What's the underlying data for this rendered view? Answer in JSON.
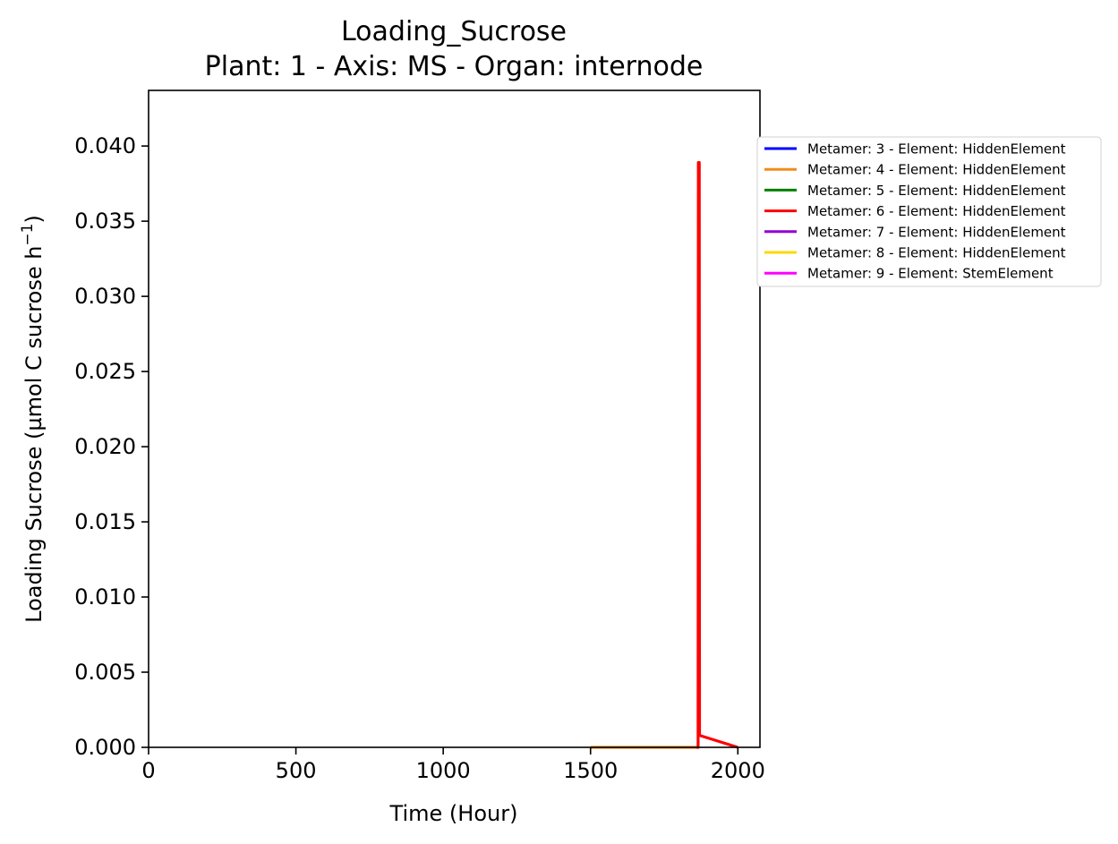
{
  "chart_data": {
    "type": "line",
    "title": "Loading_Sucrose",
    "subtitle": "Plant: 1 - Axis: MS - Organ: internode",
    "xlabel": "Time (Hour)",
    "ylabel_main": "Loading Sucrose (µmol C sucrose h",
    "ylabel_exp": "−1",
    "ylabel_close": ")",
    "xlim": [
      0,
      2075
    ],
    "ylim": [
      0,
      0.0437
    ],
    "x_ticks": [
      0,
      500,
      1000,
      1500,
      2000
    ],
    "x_tick_labels": [
      "0",
      "500",
      "1000",
      "1500",
      "2000"
    ],
    "y_ticks": [
      0,
      0.005,
      0.01,
      0.015,
      0.02,
      0.025,
      0.03,
      0.035,
      0.04
    ],
    "y_tick_labels": [
      "0.000",
      "0.005",
      "0.010",
      "0.015",
      "0.020",
      "0.025",
      "0.030",
      "0.035",
      "0.040"
    ],
    "grid": false,
    "legend_position": "outside-right",
    "series": [
      {
        "name": "Metamer: 3 - Element: HiddenElement",
        "color": "#0000ff",
        "x": [],
        "y": []
      },
      {
        "name": "Metamer: 4 - Element: HiddenElement",
        "color": "#f28c1c",
        "x": [
          1500,
          1860
        ],
        "y": [
          0,
          0
        ]
      },
      {
        "name": "Metamer: 5 - Element: HiddenElement",
        "color": "#008000",
        "x": [],
        "y": []
      },
      {
        "name": "Metamer: 6 - Element: HiddenElement",
        "color": "#ff0000",
        "x": [
          1860,
          1865,
          1866,
          1869,
          1870,
          2000
        ],
        "y": [
          0,
          0,
          0.0389,
          0.0389,
          0.0008,
          0
        ]
      },
      {
        "name": "Metamer: 7 - Element: HiddenElement",
        "color": "#9400d3",
        "x": [],
        "y": []
      },
      {
        "name": "Metamer: 8 - Element: HiddenElement",
        "color": "#ffd700",
        "x": [],
        "y": []
      },
      {
        "name": "Metamer: 9 - Element: StemElement",
        "color": "#ff00ff",
        "x": [],
        "y": []
      }
    ]
  }
}
